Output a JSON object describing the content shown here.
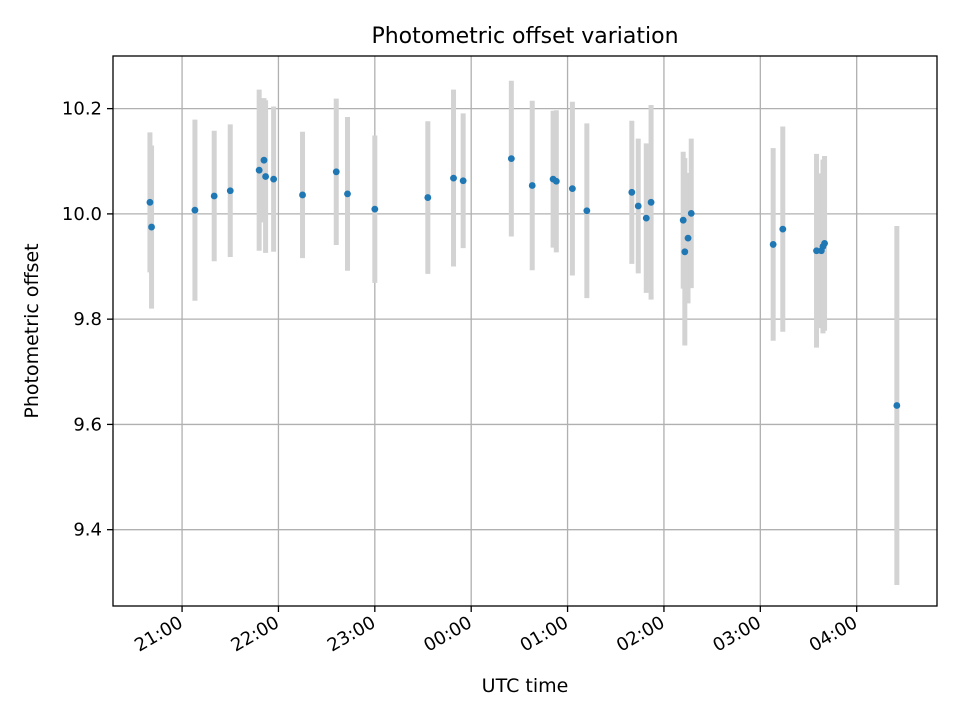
{
  "chart_data": {
    "type": "scatter",
    "title": "Photometric offset variation",
    "xlabel": "UTC time",
    "ylabel": "Photometric offset",
    "x_axis": {
      "type": "time",
      "range": [
        "20:17",
        "04:50"
      ],
      "ticks": [
        {
          "t": "21:00",
          "label": "21:00"
        },
        {
          "t": "22:00",
          "label": "22:00"
        },
        {
          "t": "23:00",
          "label": "23:00"
        },
        {
          "t": "00:00",
          "label": "00:00"
        },
        {
          "t": "01:00",
          "label": "01:00"
        },
        {
          "t": "02:00",
          "label": "02:00"
        },
        {
          "t": "03:00",
          "label": "03:00"
        },
        {
          "t": "04:00",
          "label": "04:00"
        }
      ]
    },
    "y_axis": {
      "range": [
        9.255,
        10.3
      ],
      "ticks": [
        {
          "v": 9.4,
          "label": "9.4"
        },
        {
          "v": 9.6,
          "label": "9.6"
        },
        {
          "v": 9.8,
          "label": "9.8"
        },
        {
          "v": 10.0,
          "label": "10.0"
        },
        {
          "v": 10.2,
          "label": "10.2"
        }
      ]
    },
    "grid": true,
    "colors": {
      "marker": "#1f77b4",
      "error_bar": "#d3d3d3",
      "grid": "#b0b0b0"
    },
    "points": [
      {
        "t": "20:40",
        "y": 10.022,
        "err": 0.133
      },
      {
        "t": "20:41",
        "y": 9.975,
        "err": 0.155
      },
      {
        "t": "21:08",
        "y": 10.007,
        "err": 0.172
      },
      {
        "t": "21:20",
        "y": 10.034,
        "err": 0.124
      },
      {
        "t": "21:30",
        "y": 10.044,
        "err": 0.126
      },
      {
        "t": "21:48",
        "y": 10.083,
        "err": 0.153
      },
      {
        "t": "21:51",
        "y": 10.102,
        "err": 0.118
      },
      {
        "t": "21:52",
        "y": 10.071,
        "err": 0.145
      },
      {
        "t": "21:57",
        "y": 10.066,
        "err": 0.138
      },
      {
        "t": "22:15",
        "y": 10.036,
        "err": 0.12
      },
      {
        "t": "22:36",
        "y": 10.08,
        "err": 0.139
      },
      {
        "t": "22:43",
        "y": 10.038,
        "err": 0.146
      },
      {
        "t": "23:00",
        "y": 10.009,
        "err": 0.14
      },
      {
        "t": "23:33",
        "y": 10.031,
        "err": 0.145
      },
      {
        "t": "23:49",
        "y": 10.068,
        "err": 0.168
      },
      {
        "t": "23:55",
        "y": 10.063,
        "err": 0.128
      },
      {
        "t": "00:25",
        "y": 10.105,
        "err": 0.148
      },
      {
        "t": "00:38",
        "y": 10.054,
        "err": 0.161
      },
      {
        "t": "00:51",
        "y": 10.066,
        "err": 0.13
      },
      {
        "t": "00:53",
        "y": 10.062,
        "err": 0.135
      },
      {
        "t": "01:03",
        "y": 10.048,
        "err": 0.165
      },
      {
        "t": "01:12",
        "y": 10.006,
        "err": 0.166
      },
      {
        "t": "01:40",
        "y": 10.041,
        "err": 0.136
      },
      {
        "t": "01:44",
        "y": 10.015,
        "err": 0.128
      },
      {
        "t": "01:49",
        "y": 9.992,
        "err": 0.142
      },
      {
        "t": "01:52",
        "y": 10.022,
        "err": 0.185
      },
      {
        "t": "02:12",
        "y": 9.988,
        "err": 0.13
      },
      {
        "t": "02:13",
        "y": 9.928,
        "err": 0.178
      },
      {
        "t": "02:15",
        "y": 9.954,
        "err": 0.124
      },
      {
        "t": "02:17",
        "y": 10.001,
        "err": 0.142
      },
      {
        "t": "03:08",
        "y": 9.942,
        "err": 0.183
      },
      {
        "t": "03:14",
        "y": 9.971,
        "err": 0.195
      },
      {
        "t": "03:35",
        "y": 9.93,
        "err": 0.184
      },
      {
        "t": "03:38",
        "y": 9.93,
        "err": 0.147
      },
      {
        "t": "03:39",
        "y": 9.938,
        "err": 0.165
      },
      {
        "t": "03:40",
        "y": 9.944,
        "err": 0.166
      },
      {
        "t": "04:25",
        "y": 9.636,
        "err": 0.341
      }
    ]
  }
}
